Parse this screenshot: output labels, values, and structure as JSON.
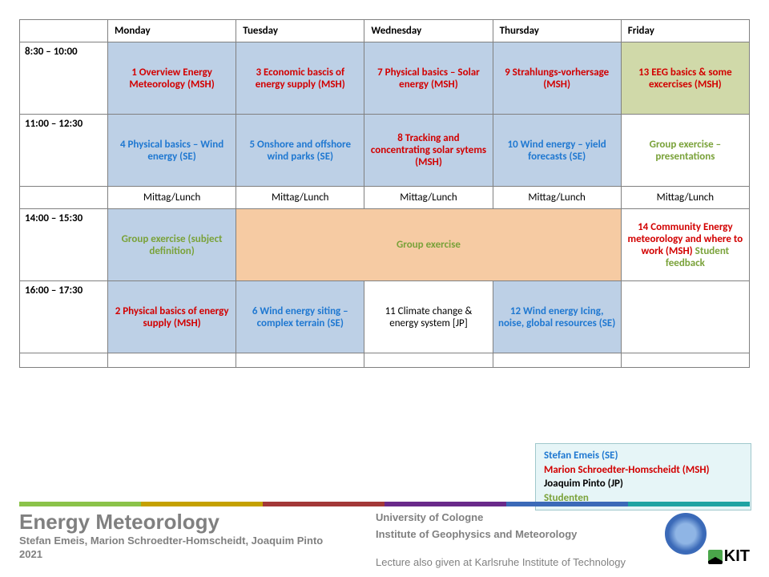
{
  "table": {
    "headers": [
      "",
      "Monday",
      "Tuesday",
      "Wednesday",
      "Thursday",
      "Friday"
    ],
    "col_widths": [
      "110px",
      "auto",
      "auto",
      "auto",
      "auto",
      "auto"
    ],
    "border_color": "#808080",
    "rows": [
      {
        "time": "8:30 – 10:00",
        "cells": [
          {
            "text": "1 Overview Energy Meteorology (MSH)",
            "class": "red",
            "bg": "bg-blue"
          },
          {
            "text": "3 Economic bascis of energy supply (MSH)",
            "class": "red",
            "bg": "bg-blue"
          },
          {
            "text": "7 Physical basics – Solar energy (MSH)",
            "class": "red",
            "bg": "bg-blue"
          },
          {
            "text": "9 Strahlungs-vorhersage (MSH)",
            "class": "red",
            "bg": "bg-blue"
          },
          {
            "text": "13 EEG basics & some excercises (MSH)",
            "class": "red",
            "bg": "bg-olive"
          }
        ]
      },
      {
        "time": "11:00 – 12:30",
        "cells": [
          {
            "text": "4 Physical basics – Wind energy (SE)",
            "class": "blue",
            "bg": "bg-blue"
          },
          {
            "text": "5 Onshore and offshore wind parks (SE)",
            "class": "blue",
            "bg": "bg-blue"
          },
          {
            "text": "8 Tracking and concentrating solar sytems (MSH)",
            "class": "red",
            "bg": "bg-blue"
          },
          {
            "text": "10 Wind energy – yield forecasts  (SE)",
            "class": "blue",
            "bg": "bg-blue"
          },
          {
            "text": "Group exercise – presentations",
            "class": "green",
            "bg": "bg-white"
          }
        ]
      },
      {
        "time": "",
        "lunch": "Mittag/Lunch"
      },
      {
        "time": "14:00 – 15:30",
        "cells": [
          {
            "text": "Group exercise (subject definition)",
            "class": "green",
            "bg": "bg-blue"
          },
          {
            "text": "Group exercise",
            "class": "green",
            "bg": "bg-orange",
            "colspan": 3
          },
          {
            "parts": [
              {
                "text": "14 Community Energy meteorology and where to work (MSH) ",
                "class": "red"
              },
              {
                "text": "Student feedback",
                "class": "green"
              }
            ],
            "bg": "bg-white"
          }
        ]
      },
      {
        "time": "16:00 – 17:30",
        "cells": [
          {
            "text": "2 Physical basics of energy supply (MSH)",
            "class": "red",
            "bg": "bg-blue"
          },
          {
            "text": "6 Wind energy siting – complex terrain (SE)",
            "class": "blue",
            "bg": "bg-blue"
          },
          {
            "text": "11 Climate change & energy system [JP]",
            "class": "black",
            "bg": "bg-white"
          },
          {
            "text": "12 Wind energy Icing, noise, global resources (SE)",
            "class": "blue",
            "bg": "bg-blue"
          },
          {
            "text": "",
            "class": "black",
            "bg": "bg-white"
          }
        ]
      }
    ]
  },
  "legend": {
    "items": [
      {
        "text": "Stefan Emeis (SE)",
        "class": "blue"
      },
      {
        "text": "Marion Schroedter-Homscheidt (MSH)",
        "class": "red"
      },
      {
        "text": "Joaquim Pinto (JP)",
        "class": "blackb"
      },
      {
        "text": "Studenten",
        "class": "green"
      }
    ],
    "bg": "#e6f5f7",
    "border": "#a0c8cc"
  },
  "footer_bar_colors": [
    "#8bc34a",
    "#c5a100",
    "#a33838",
    "#6a2a8a",
    "#3b6ab8",
    "#1fa3a3"
  ],
  "footer": {
    "title": "Energy Meteorology",
    "authors": "Stefan Emeis, Marion Schroedter-Homscheidt, Joaquim Pinto",
    "year": "2021",
    "right1": "University of Cologne",
    "right2": "Institute of Geophysics and Meteorology",
    "right3": "Lecture also given at Karlsruhe Institute  of Technology",
    "kit": "KIT"
  }
}
